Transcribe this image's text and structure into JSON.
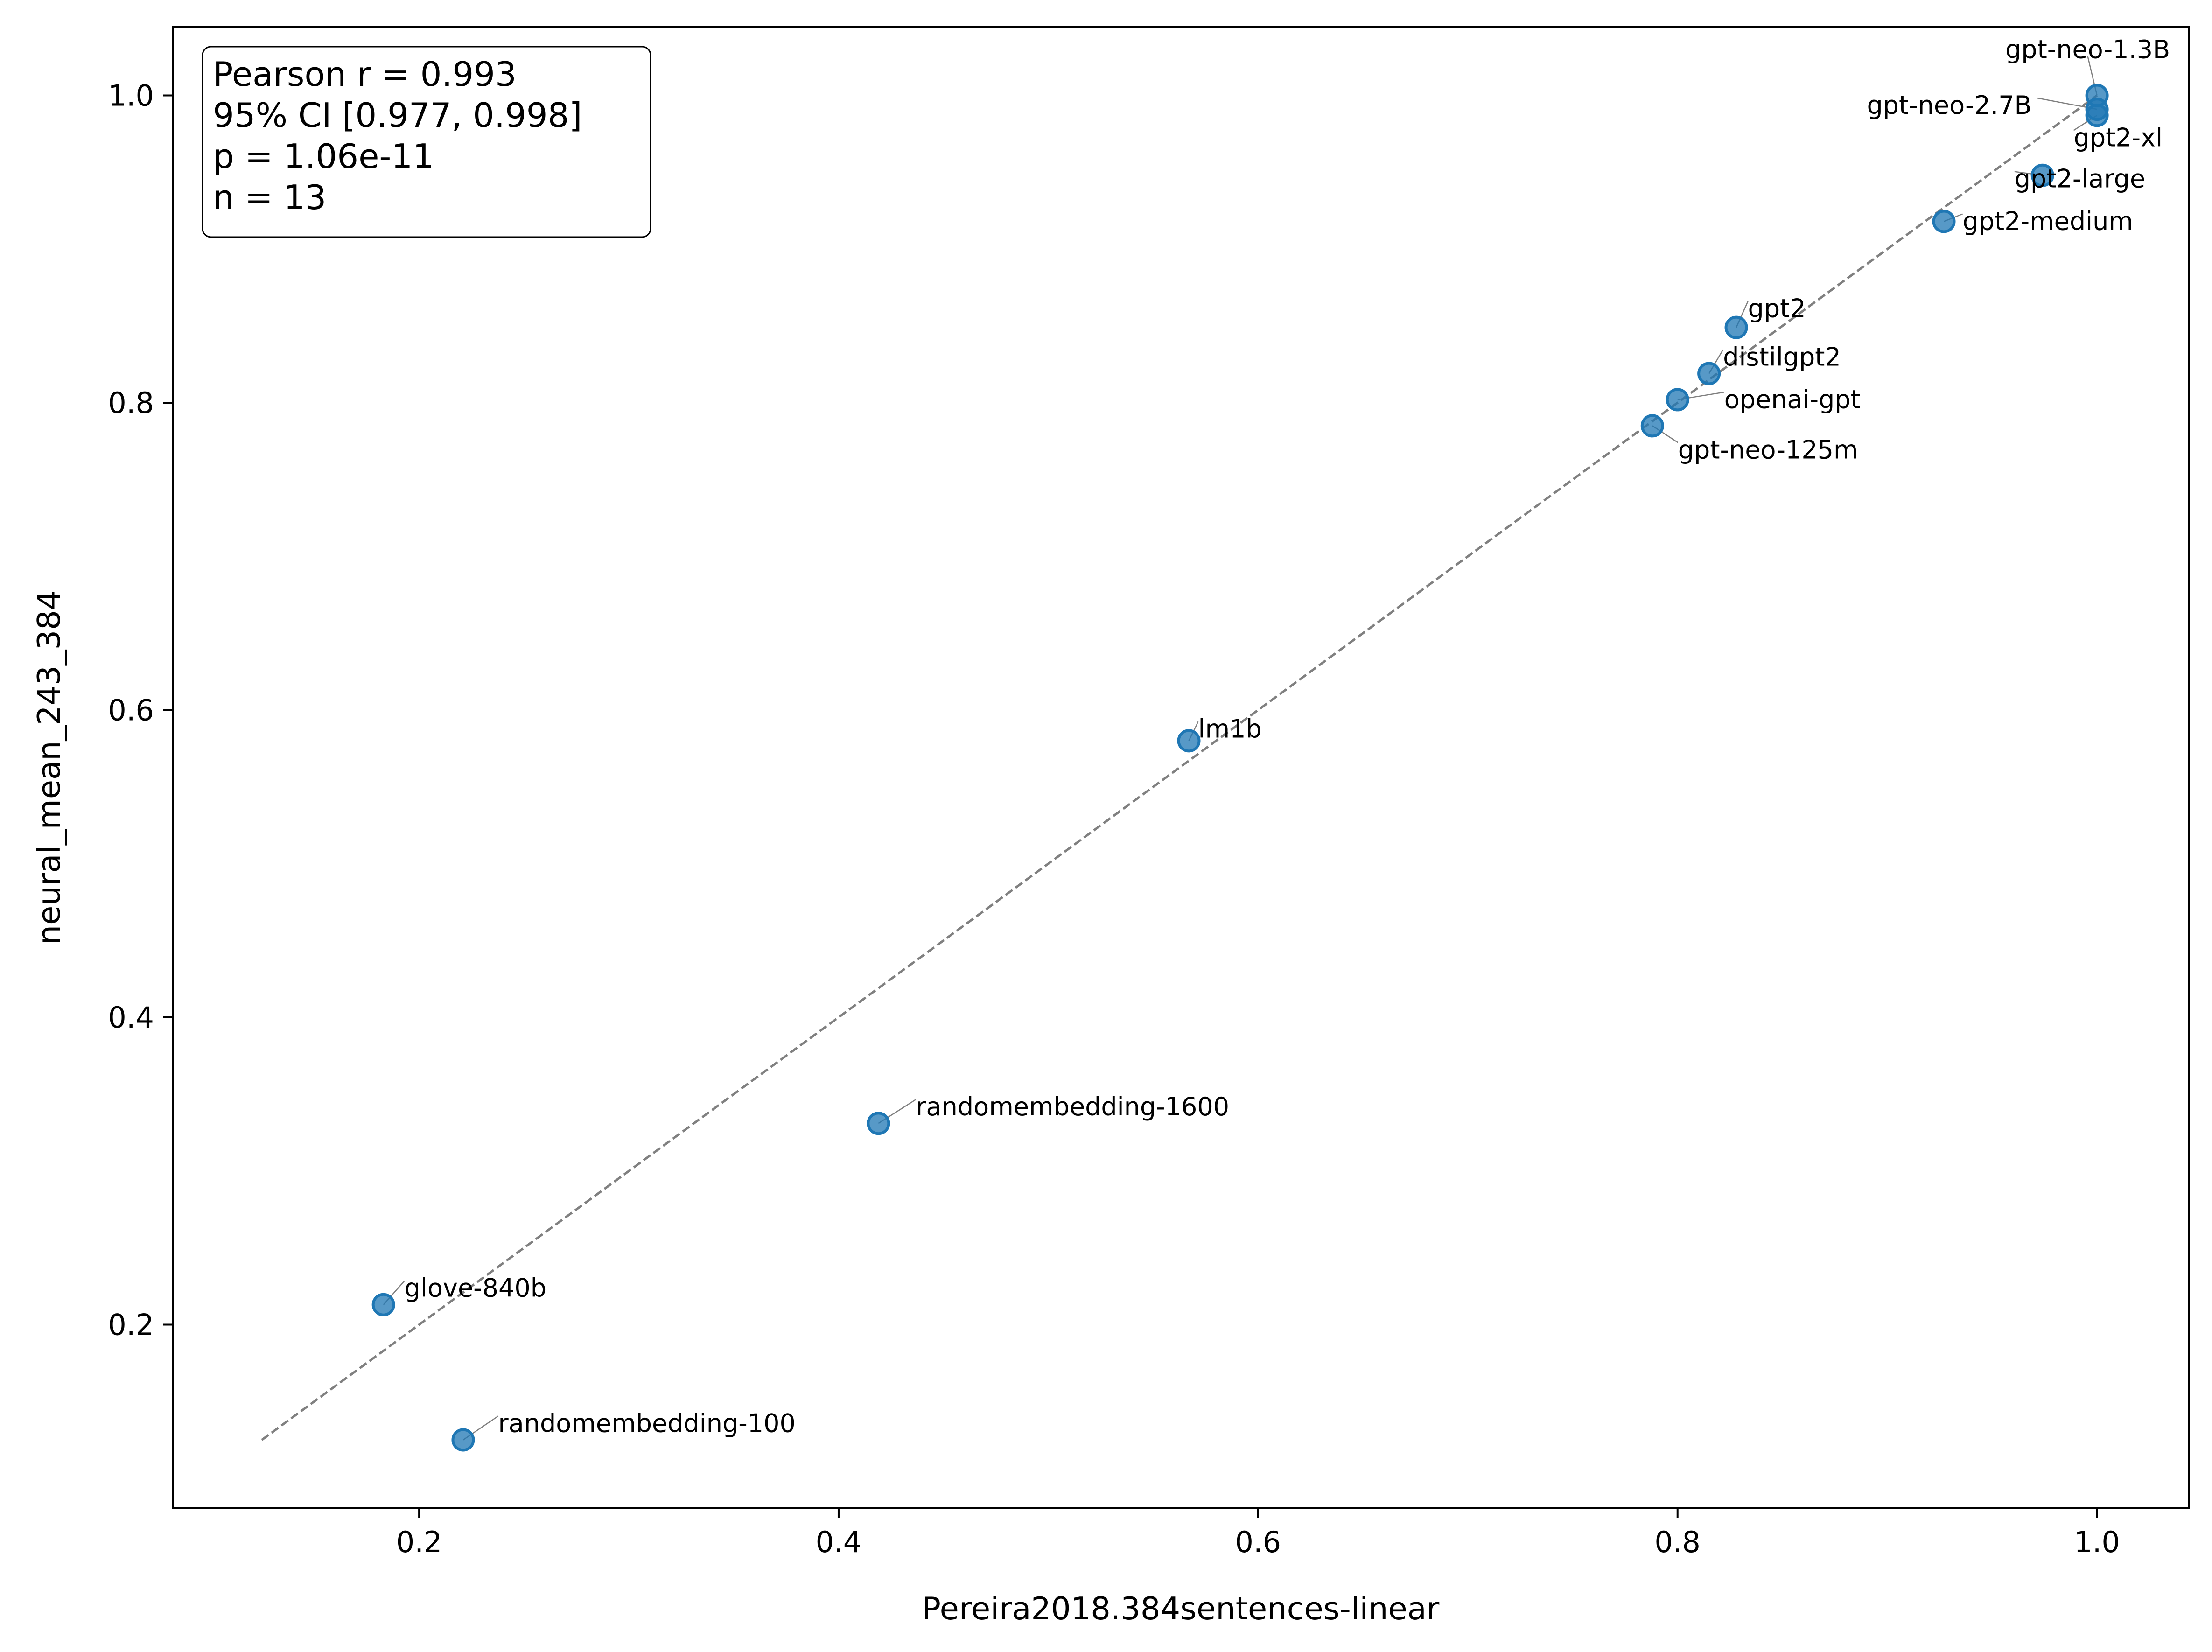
{
  "chart_data": {
    "type": "scatter",
    "title": "",
    "xlabel": "Pereira2018.384sentences-linear",
    "ylabel": "neural_mean_243_384",
    "xlim": [
      0.0825,
      1.0437
    ],
    "ylim": [
      0.0805,
      1.0448
    ],
    "xticks": [
      0.2,
      0.4,
      0.6,
      0.8,
      1.0
    ],
    "xtick_labels": [
      "0.2",
      "0.4",
      "0.6",
      "0.8",
      "1.0"
    ],
    "yticks": [
      0.2,
      0.4,
      0.6,
      0.8,
      1.0
    ],
    "ytick_labels": [
      "0.2",
      "0.4",
      "0.6",
      "0.8",
      "1.0"
    ],
    "grid": false,
    "legend": "none",
    "point_color": "#1f77b4",
    "fit_line_color": "#808080",
    "fit_line": {
      "x": [
        0.125,
        1.0
      ],
      "y": [
        0.125,
        1.0
      ],
      "style": "dashed"
    },
    "points": [
      {
        "label": "gpt-neo-1.3B",
        "x": 1.0,
        "y": 1.0
      },
      {
        "label": "gpt-neo-2.7B",
        "x": 1.0,
        "y": 0.991
      },
      {
        "label": "gpt2-xl",
        "x": 1.0,
        "y": 0.987
      },
      {
        "label": "gpt2-large",
        "x": 0.974,
        "y": 0.948
      },
      {
        "label": "gpt2-medium",
        "x": 0.927,
        "y": 0.918
      },
      {
        "label": "gpt2",
        "x": 0.828,
        "y": 0.849
      },
      {
        "label": "distilgpt2",
        "x": 0.815,
        "y": 0.819
      },
      {
        "label": "openai-gpt",
        "x": 0.8,
        "y": 0.802
      },
      {
        "label": "gpt-neo-125m",
        "x": 0.788,
        "y": 0.785
      },
      {
        "label": "lm1b",
        "x": 0.567,
        "y": 0.58
      },
      {
        "label": "randomembedding-1600",
        "x": 0.419,
        "y": 0.331
      },
      {
        "label": "glove-840b",
        "x": 0.183,
        "y": 0.213
      },
      {
        "label": "randomembedding-100",
        "x": 0.221,
        "y": 0.125
      }
    ],
    "annotation": {
      "lines": [
        "Pearson r = 0.993",
        "95% CI [0.977, 0.998]",
        "p = 1.06e-11",
        "n = 13"
      ],
      "placement": "top-left"
    }
  }
}
